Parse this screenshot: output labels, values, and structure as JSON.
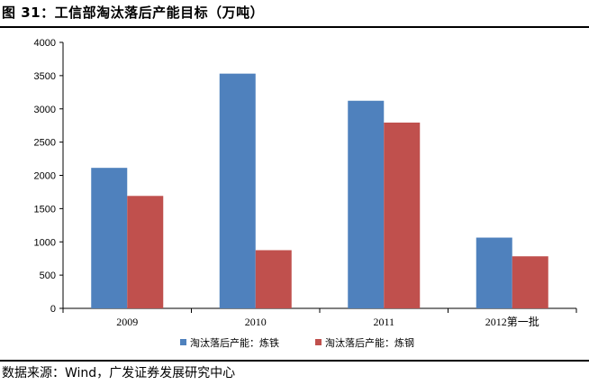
{
  "header": {
    "title": "图 31：工信部淘汰落后产能目标（万吨）"
  },
  "footer": {
    "source": "数据来源：Wind，广发证券发展研究中心"
  },
  "colors": {
    "series1": "#4F81BD",
    "series2": "#C0504D",
    "axis": "#000000"
  },
  "chart_data": {
    "type": "bar",
    "title": "",
    "xlabel": "",
    "ylabel": "",
    "categories": [
      "2009",
      "2010",
      "2011",
      "2012第一批"
    ],
    "series": [
      {
        "name": "淘汰落后产能：炼铁",
        "values": [
          2113,
          3530,
          3122,
          1064
        ]
      },
      {
        "name": "淘汰落后产能：炼钢",
        "values": [
          1691,
          875,
          2794,
          783
        ]
      }
    ],
    "ylim": [
      0,
      4000
    ],
    "yticks": [
      0,
      500,
      1000,
      1500,
      2000,
      2500,
      3000,
      3500,
      4000
    ],
    "grid": false,
    "legend": "bottom"
  }
}
